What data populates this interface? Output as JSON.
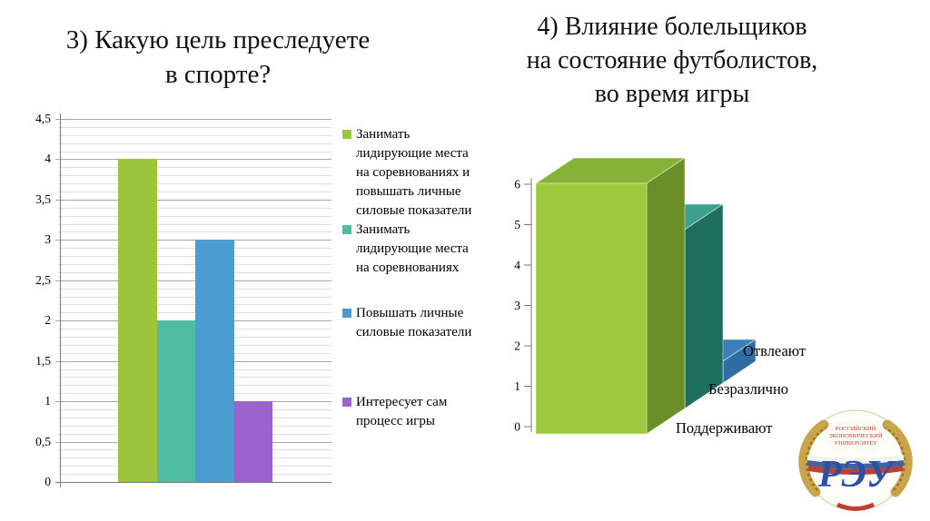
{
  "titles": {
    "left": "3) Какую цель преследуете\nв спорте?",
    "right": "4) Влияние болельщиков\nна состояние футболистов,\nво время игры"
  },
  "chart_data": [
    {
      "id": "goal-in-sport",
      "type": "bar",
      "title": "3) Какую цель преследуете в спорте?",
      "categories": [
        "Занимать лидирующие места на соревнованиях и повышать личные силовые показатели",
        "Занимать лидирующие места на соревнованиях",
        "Повышать личные силовые показатели",
        "Интересует сам процесс игры"
      ],
      "values": [
        4,
        2,
        3,
        1
      ],
      "colors": [
        "#9CC43D",
        "#4FBCA4",
        "#4A9CD1",
        "#9B64CC"
      ],
      "ylim": [
        0,
        4.5
      ],
      "ytick_step": 0.5,
      "minor_tick_step": 0.1,
      "ytick_labels": [
        "0",
        "0,5",
        "1",
        "1,5",
        "2",
        "2,5",
        "3",
        "3,5",
        "4",
        "4,5"
      ],
      "grid": "horizontal, minor + major",
      "legend_position": "right",
      "legend": [
        {
          "label": "Занимать лидирующие места на соревнованиях и повышать личные силовые показатели",
          "color": "#9CC43D"
        },
        {
          "label": "Занимать лидирующие места на соревнованиях",
          "color": "#4FBCA4"
        },
        {
          "label": "Повышать личные силовые показатели",
          "color": "#4A9CD1"
        },
        {
          "label": "Интересует сам процесс игры",
          "color": "#9B64CC"
        }
      ]
    },
    {
      "id": "fans-influence",
      "type": "bar",
      "style": "3d",
      "title": "4) Влияние болельщиков на состояние футболистов, во время игры",
      "categories": [
        "Поддерживают",
        "Безразлично",
        "Отвлеают"
      ],
      "values": [
        6,
        5,
        2
      ],
      "colors": [
        {
          "front": "#9CCA3C",
          "top": "#85B237",
          "side": "#6B8E27"
        },
        {
          "front": "#2F9181",
          "top": "#3EA18D",
          "side": "#1E6F60"
        },
        {
          "front": "#3D80B8",
          "top": "#3D80B8",
          "side": "#2F6DA3"
        }
      ],
      "ylim": [
        0,
        6
      ],
      "ytick_labels": [
        "0",
        "1",
        "2",
        "3",
        "4",
        "5",
        "6"
      ],
      "grid": false,
      "legend_position": "none"
    }
  ],
  "logo": {
    "name": "reu-plekhanov-university-emblem",
    "monogram": "РЭУ",
    "arc_text_lines": [
      "РОССИЙСКИЙ",
      "ЭКОНОМИЧЕСКИЙ",
      "УНИВЕРСИТЕТ"
    ],
    "wreath_color": "#C9A44A",
    "monogram_color": "#2D50A7",
    "flag_colors": [
      "#F2F2F2",
      "#40639F",
      "#BF3F34"
    ]
  }
}
